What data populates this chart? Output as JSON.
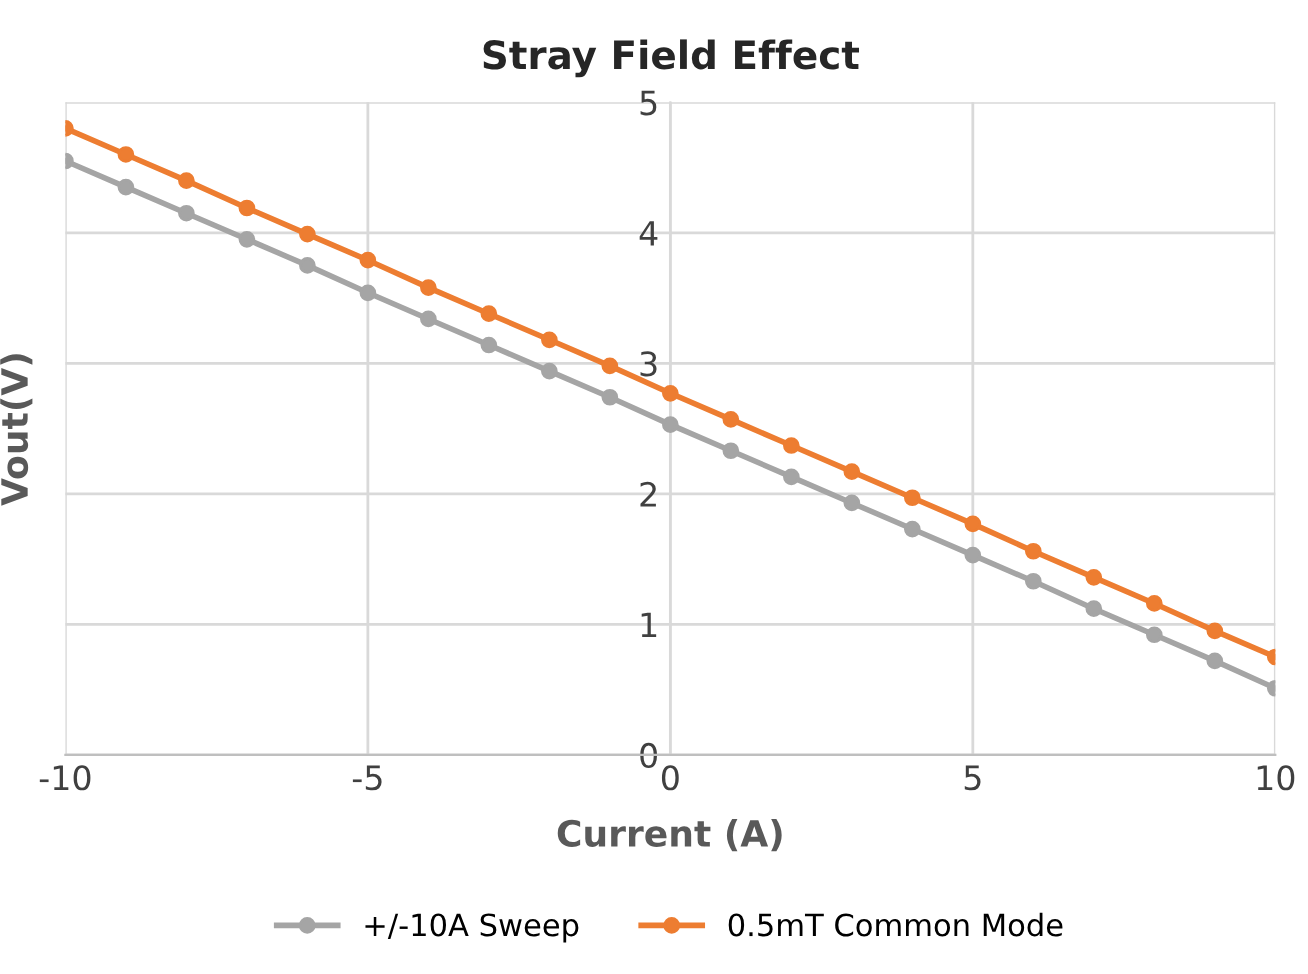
{
  "chart_data": {
    "type": "line",
    "title": "Stray Field Effect",
    "xlabel": "Current (A)",
    "ylabel": "Vout(V)",
    "x": [
      -10,
      -9,
      -8,
      -7,
      -6,
      -5,
      -4,
      -3,
      -2,
      -1,
      0,
      1,
      2,
      3,
      4,
      5,
      6,
      7,
      8,
      9,
      10
    ],
    "series": [
      {
        "name": "+/-10A Sweep",
        "color": "#a5a5a5",
        "values": [
          4.55,
          4.35,
          4.15,
          3.95,
          3.75,
          3.54,
          3.34,
          3.14,
          2.94,
          2.74,
          2.53,
          2.33,
          2.13,
          1.93,
          1.73,
          1.53,
          1.33,
          1.12,
          0.92,
          0.72,
          0.51
        ]
      },
      {
        "name": "0.5mT Common Mode",
        "color": "#ed7d31",
        "values": [
          4.8,
          4.6,
          4.4,
          4.19,
          3.99,
          3.79,
          3.58,
          3.38,
          3.18,
          2.98,
          2.77,
          2.57,
          2.37,
          2.17,
          1.97,
          1.77,
          1.56,
          1.36,
          1.16,
          0.95,
          0.75
        ]
      }
    ],
    "xlim": [
      -10,
      10
    ],
    "xticks": [
      -10,
      -5,
      0,
      5,
      10
    ],
    "ylim": [
      0,
      5
    ],
    "yticks": [
      0,
      1,
      2,
      3,
      4,
      5
    ],
    "grid": true,
    "legend": "bottom",
    "marker": "circle",
    "line_style": "solid"
  }
}
